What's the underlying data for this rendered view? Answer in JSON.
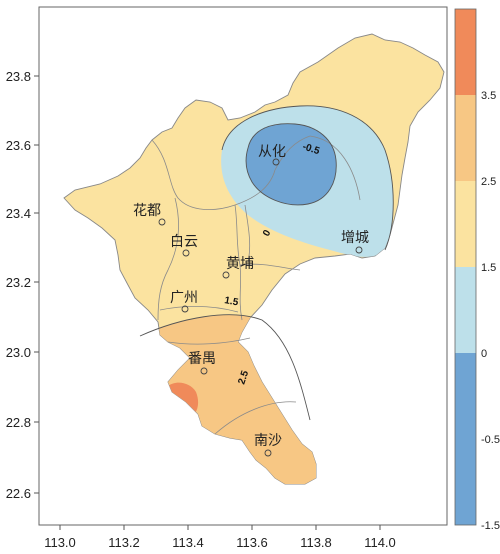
{
  "map": {
    "x_ticks": [
      "113.0",
      "113.2",
      "113.4",
      "113.6",
      "113.8",
      "114.0"
    ],
    "y_ticks": [
      "22.6",
      "22.8",
      "23.0",
      "23.2",
      "23.4",
      "23.6",
      "23.8"
    ],
    "districts": {
      "conghua": "从化",
      "zengcheng": "增城",
      "huadu": "花都",
      "baiyun": "白云",
      "huangpu": "黄埔",
      "guangzhou": "广州",
      "panyu": "番禺",
      "nansha": "南沙"
    },
    "contour_labels": [
      "-0.5",
      "0",
      "1.5",
      "2.5"
    ]
  },
  "colorbar": {
    "labels": [
      "3.5",
      "2.5",
      "1.5",
      "0",
      "-0.5",
      "-1.5"
    ],
    "colors": [
      "#f08a5a",
      "#f7c784",
      "#fbe3a0",
      "#bde0ea",
      "#6fa4d3"
    ]
  },
  "colors": {
    "land_base": "#fbe3a0",
    "band_1_5_2_5": "#f7c784",
    "band_2_5_3_5": "#f08a5a",
    "band_0_m05": "#bde0ea",
    "band_m05_m15": "#6fa4d3",
    "boundary": "#8a8a8a"
  }
}
